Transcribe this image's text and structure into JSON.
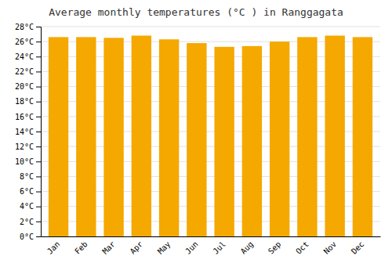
{
  "chart_data": {
    "type": "bar",
    "title": "Average monthly temperatures (°C ) in Ranggagata",
    "categories": [
      "Jan",
      "Feb",
      "Mar",
      "Apr",
      "May",
      "Jun",
      "Jul",
      "Aug",
      "Sep",
      "Oct",
      "Nov",
      "Dec"
    ],
    "values": [
      26.6,
      26.6,
      26.5,
      26.8,
      26.3,
      25.8,
      25.3,
      25.4,
      26.0,
      26.6,
      26.8,
      26.6
    ],
    "color": "#F5A800",
    "ylim": [
      0,
      28
    ],
    "yticks": [
      {
        "value": 0,
        "label": "0°C"
      },
      {
        "value": 2,
        "label": "2°C"
      },
      {
        "value": 4,
        "label": "4°C"
      },
      {
        "value": 6,
        "label": "6°C"
      },
      {
        "value": 8,
        "label": "8°C"
      },
      {
        "value": 10,
        "label": "10°C"
      },
      {
        "value": 12,
        "label": "12°C"
      },
      {
        "value": 14,
        "label": "14°C"
      },
      {
        "value": 16,
        "label": "16°C"
      },
      {
        "value": 18,
        "label": "18°C"
      },
      {
        "value": 20,
        "label": "20°C"
      },
      {
        "value": 22,
        "label": "22°C"
      },
      {
        "value": 24,
        "label": "24°C"
      },
      {
        "value": 26,
        "label": "26°C"
      },
      {
        "value": 28,
        "label": "28°C"
      }
    ],
    "grid": true
  }
}
